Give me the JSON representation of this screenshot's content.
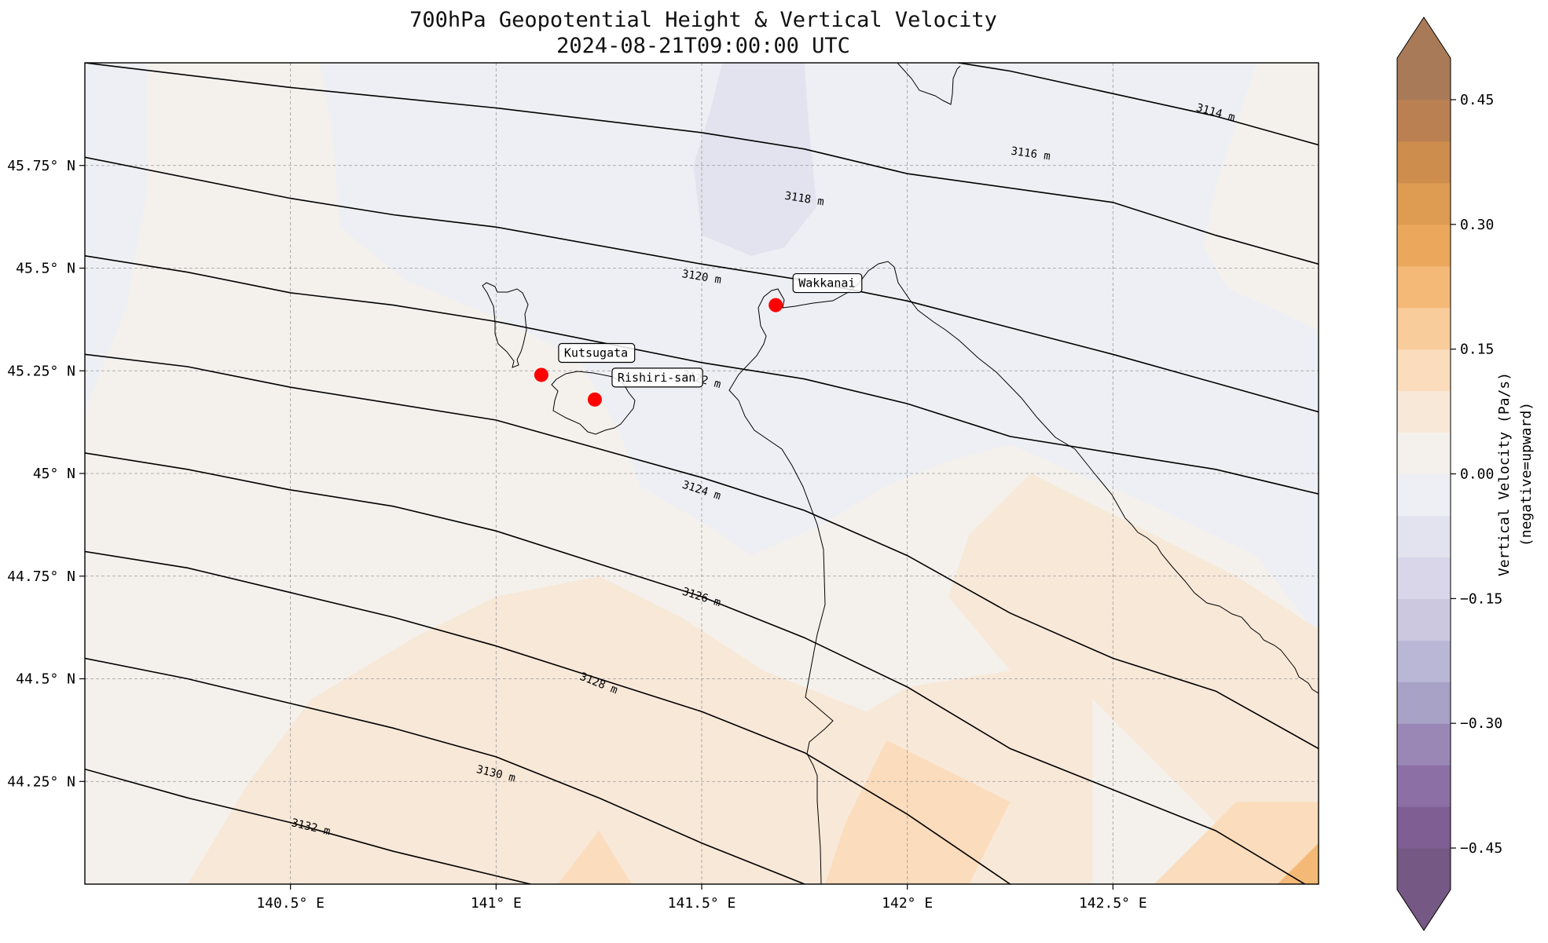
{
  "title": "700hPa Geopotential Height & Vertical Velocity",
  "valid_time": "2024-08-21T09:00:00 UTC",
  "map": {
    "lon_range": [
      140.0,
      143.0
    ],
    "lat_range": [
      44.0,
      46.0
    ],
    "lon_ticks": [
      {
        "value": 140.5,
        "label": "140.5° E"
      },
      {
        "value": 141.0,
        "label": "141° E"
      },
      {
        "value": 141.5,
        "label": "141.5° E"
      },
      {
        "value": 142.0,
        "label": "142° E"
      },
      {
        "value": 142.5,
        "label": "142.5° E"
      }
    ],
    "lat_ticks": [
      {
        "value": 45.75,
        "label": "45.75° N"
      },
      {
        "value": 45.5,
        "label": "45.5° N"
      },
      {
        "value": 45.25,
        "label": "45.25° N"
      },
      {
        "value": 45.0,
        "label": "45° N"
      },
      {
        "value": 44.75,
        "label": "44.75° N"
      },
      {
        "value": 44.5,
        "label": "44.5° N"
      },
      {
        "value": 44.25,
        "label": "44.25° N"
      }
    ],
    "gridlines": true,
    "places": [
      {
        "name": "Kutsugata",
        "lon": 141.11,
        "lat": 45.24
      },
      {
        "name": "Rishiri-san",
        "lon": 141.24,
        "lat": 45.18
      },
      {
        "name": "Wakkanai",
        "lon": 141.68,
        "lat": 45.41
      }
    ],
    "contours": [
      {
        "label": "3114 m",
        "label_at": [
          142.75,
          45.88
        ],
        "points": [
          [
            141.75,
            46.06
          ],
          [
            142.25,
            45.98
          ],
          [
            142.75,
            45.87
          ],
          [
            143.0,
            45.8
          ]
        ]
      },
      {
        "label": "3116 m",
        "label_at": [
          142.3,
          45.78
        ],
        "points": [
          [
            140.0,
            46.0
          ],
          [
            140.5,
            45.94
          ],
          [
            141.0,
            45.89
          ],
          [
            141.5,
            45.83
          ],
          [
            141.75,
            45.79
          ],
          [
            142.0,
            45.73
          ],
          [
            142.5,
            45.66
          ],
          [
            142.75,
            45.58
          ],
          [
            143.0,
            45.51
          ]
        ]
      },
      {
        "label": "3118 m",
        "label_at": [
          141.75,
          45.67
        ],
        "points": [
          [
            140.0,
            45.77
          ],
          [
            140.5,
            45.67
          ],
          [
            140.75,
            45.63
          ],
          [
            141.0,
            45.6
          ],
          [
            141.5,
            45.51
          ],
          [
            141.75,
            45.47
          ],
          [
            142.0,
            45.42
          ],
          [
            142.5,
            45.29
          ],
          [
            142.75,
            45.22
          ],
          [
            143.0,
            45.15
          ]
        ]
      },
      {
        "label": "3120 m",
        "label_at": [
          141.5,
          45.48
        ],
        "points": [
          [
            140.0,
            45.53
          ],
          [
            140.25,
            45.49
          ],
          [
            140.5,
            45.44
          ],
          [
            140.75,
            45.41
          ],
          [
            141.0,
            45.37
          ],
          [
            141.5,
            45.27
          ],
          [
            141.75,
            45.23
          ],
          [
            142.0,
            45.17
          ],
          [
            142.25,
            45.09
          ],
          [
            142.5,
            45.05
          ],
          [
            142.75,
            45.01
          ],
          [
            143.0,
            44.95
          ]
        ]
      },
      {
        "label": "3122 m",
        "label_at": [
          141.5,
          45.23
        ],
        "points": [
          [
            140.0,
            45.29
          ],
          [
            140.25,
            45.26
          ],
          [
            140.5,
            45.21
          ],
          [
            140.75,
            45.17
          ],
          [
            141.0,
            45.13
          ],
          [
            141.25,
            45.06
          ],
          [
            141.5,
            44.99
          ],
          [
            141.75,
            44.91
          ],
          [
            142.0,
            44.8
          ],
          [
            142.25,
            44.66
          ],
          [
            142.5,
            44.55
          ],
          [
            142.75,
            44.47
          ],
          [
            143.0,
            44.33
          ]
        ]
      },
      {
        "label": "3124 m",
        "label_at": [
          141.5,
          44.96
        ],
        "points": [
          [
            140.0,
            45.05
          ],
          [
            140.25,
            45.01
          ],
          [
            140.5,
            44.96
          ],
          [
            140.75,
            44.92
          ],
          [
            141.0,
            44.86
          ],
          [
            141.25,
            44.78
          ],
          [
            141.5,
            44.7
          ],
          [
            141.75,
            44.6
          ],
          [
            142.0,
            44.48
          ],
          [
            142.25,
            44.33
          ],
          [
            142.5,
            44.23
          ],
          [
            142.75,
            44.13
          ],
          [
            143.0,
            43.98
          ]
        ]
      },
      {
        "label": "3126 m",
        "label_at": [
          141.5,
          44.7
        ],
        "points": [
          [
            140.0,
            44.81
          ],
          [
            140.25,
            44.77
          ],
          [
            140.5,
            44.71
          ],
          [
            140.75,
            44.65
          ],
          [
            141.0,
            44.58
          ],
          [
            141.25,
            44.5
          ],
          [
            141.5,
            44.42
          ],
          [
            141.75,
            44.32
          ],
          [
            142.0,
            44.17
          ],
          [
            142.25,
            44.0
          ],
          [
            142.5,
            43.95
          ]
        ]
      },
      {
        "label": "3128 m",
        "label_at": [
          141.25,
          44.49
        ],
        "points": [
          [
            140.0,
            44.55
          ],
          [
            140.25,
            44.5
          ],
          [
            140.5,
            44.44
          ],
          [
            140.75,
            44.38
          ],
          [
            141.0,
            44.31
          ],
          [
            141.25,
            44.21
          ],
          [
            141.5,
            44.1
          ],
          [
            141.75,
            44.0
          ],
          [
            141.9,
            43.9
          ]
        ]
      },
      {
        "label": "3130 m",
        "label_at": [
          141.0,
          44.27
        ],
        "points": [
          [
            140.0,
            44.28
          ],
          [
            140.25,
            44.21
          ],
          [
            140.5,
            44.15
          ],
          [
            140.75,
            44.08
          ],
          [
            141.0,
            44.02
          ],
          [
            141.25,
            43.96
          ]
        ]
      },
      {
        "label": "3132 m",
        "label_at": [
          140.55,
          44.14
        ],
        "points": [
          [
            140.0,
            44.0
          ],
          [
            140.25,
            43.94
          ]
        ]
      }
    ]
  },
  "colorbar": {
    "label": "Vertical Velocity (Pa/s)",
    "sublabel": "(negative=upward)",
    "vmin": -0.5,
    "vmax": 0.5,
    "ticks": [
      {
        "value": 0.45,
        "label": "0.45"
      },
      {
        "value": 0.3,
        "label": "0.30"
      },
      {
        "value": 0.15,
        "label": "0.15"
      },
      {
        "value": 0.0,
        "label": "0.00"
      },
      {
        "value": -0.15,
        "label": "−0.15"
      },
      {
        "value": -0.3,
        "label": "−0.30"
      },
      {
        "value": -0.45,
        "label": "−0.45"
      }
    ],
    "colors": [
      "#765884",
      "#7f5e94",
      "#8b6fa5",
      "#9a87b6",
      "#a8a2c7",
      "#bab7d6",
      "#cbc8e0",
      "#d8d6e8",
      "#e3e3ef",
      "#eeeff4",
      "#f4f1ec",
      "#f8e8d8",
      "#fbdcbc",
      "#f9cc9b",
      "#f4b977",
      "#eba85d",
      "#de9b52",
      "#cd8d4d",
      "#bb8052",
      "#a97a58"
    ]
  },
  "chart_data": {
    "type": "contour",
    "title": "700hPa Geopotential Height & Vertical Velocity",
    "subtitle": "2024-08-21T09:00:00 UTC",
    "xlabel": "",
    "ylabel": "",
    "xlim": [
      140.0,
      143.0
    ],
    "ylim": [
      44.0,
      46.0
    ],
    "contour_levels_m": [
      3114,
      3116,
      3118,
      3120,
      3122,
      3124,
      3126,
      3128,
      3130,
      3132
    ],
    "vertical_velocity_regions": [
      {
        "label": "0.00",
        "points": [
          [
            140.0,
            44.0
          ],
          [
            143.0,
            44.0
          ],
          [
            143.0,
            46.0
          ],
          [
            140.0,
            46.0
          ]
        ]
      },
      {
        "label": "-0.04",
        "points": [
          [
            140.0,
            46.0
          ],
          [
            140.15,
            46.0
          ],
          [
            140.15,
            45.68
          ],
          [
            140.1,
            45.4
          ],
          [
            140.0,
            45.15
          ]
        ]
      },
      {
        "label": "-0.04",
        "points": [
          [
            140.57,
            46.0
          ],
          [
            142.85,
            46.0
          ],
          [
            142.8,
            45.85
          ],
          [
            142.75,
            45.7
          ],
          [
            142.72,
            45.55
          ],
          [
            142.78,
            45.45
          ],
          [
            143.0,
            45.35
          ],
          [
            143.0,
            44.6
          ],
          [
            142.85,
            44.8
          ],
          [
            142.6,
            44.92
          ],
          [
            142.25,
            45.07
          ],
          [
            142.1,
            45.03
          ],
          [
            141.95,
            44.97
          ],
          [
            141.8,
            44.88
          ],
          [
            141.62,
            44.8
          ],
          [
            141.55,
            44.85
          ],
          [
            141.35,
            44.97
          ],
          [
            141.3,
            45.1
          ],
          [
            141.2,
            45.28
          ],
          [
            141.0,
            45.38
          ],
          [
            140.78,
            45.47
          ],
          [
            140.62,
            45.6
          ],
          [
            140.6,
            45.85
          ]
        ]
      },
      {
        "label": "-0.08",
        "points": [
          [
            141.55,
            46.0
          ],
          [
            141.75,
            46.0
          ],
          [
            141.76,
            45.85
          ],
          [
            141.78,
            45.65
          ],
          [
            141.7,
            45.55
          ],
          [
            141.62,
            45.53
          ],
          [
            141.5,
            45.58
          ],
          [
            141.48,
            45.75
          ],
          [
            141.52,
            45.88
          ]
        ]
      },
      {
        "label": "0.05",
        "points": [
          [
            140.25,
            44.0
          ],
          [
            140.4,
            44.25
          ],
          [
            140.55,
            44.45
          ],
          [
            140.8,
            44.6
          ],
          [
            141.0,
            44.7
          ],
          [
            141.25,
            44.75
          ],
          [
            141.45,
            44.65
          ],
          [
            141.65,
            44.52
          ],
          [
            141.9,
            44.42
          ],
          [
            142.0,
            44.48
          ],
          [
            142.25,
            44.52
          ],
          [
            142.45,
            44.45
          ],
          [
            142.45,
            44.0
          ]
        ]
      },
      {
        "label": "0.05",
        "points": [
          [
            142.3,
            45.0
          ],
          [
            142.5,
            44.9
          ],
          [
            142.8,
            44.75
          ],
          [
            143.0,
            44.62
          ],
          [
            143.0,
            44.0
          ],
          [
            142.9,
            44.0
          ],
          [
            142.75,
            44.15
          ],
          [
            142.6,
            44.3
          ],
          [
            142.45,
            44.45
          ],
          [
            142.25,
            44.52
          ],
          [
            142.1,
            44.7
          ],
          [
            142.15,
            44.85
          ]
        ]
      },
      {
        "label": "0.10",
        "points": [
          [
            141.8,
            44.0
          ],
          [
            141.85,
            44.15
          ],
          [
            141.95,
            44.35
          ],
          [
            142.05,
            44.3
          ],
          [
            142.25,
            44.2
          ],
          [
            142.15,
            44.0
          ]
        ]
      },
      {
        "label": "0.10",
        "points": [
          [
            141.15,
            44.0
          ],
          [
            141.25,
            44.13
          ],
          [
            141.33,
            44.0
          ]
        ]
      },
      {
        "label": "0.10",
        "points": [
          [
            142.6,
            44.0
          ],
          [
            142.8,
            44.2
          ],
          [
            143.0,
            44.2
          ],
          [
            143.0,
            44.0
          ]
        ]
      },
      {
        "label": "0.20",
        "points": [
          [
            142.9,
            44.0
          ],
          [
            143.0,
            44.1
          ],
          [
            143.0,
            44.0
          ]
        ]
      }
    ],
    "places": [
      "Kutsugata",
      "Rishiri-san",
      "Wakkanai"
    ]
  }
}
